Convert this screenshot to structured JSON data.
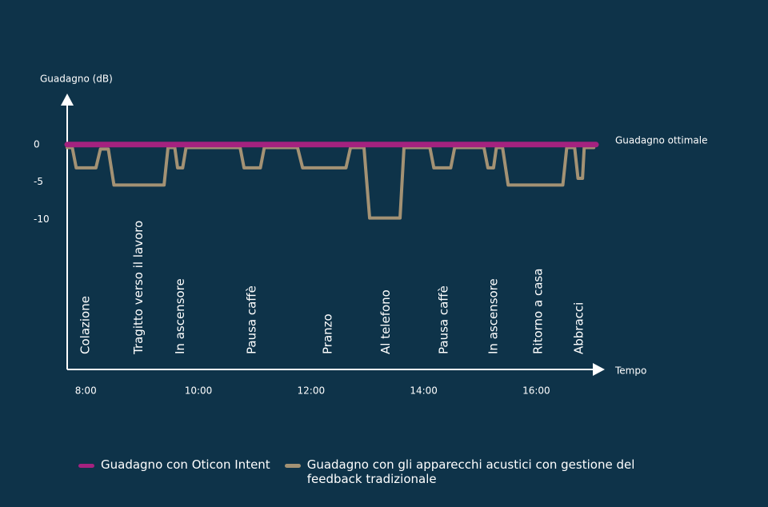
{
  "chart_data": {
    "type": "line",
    "y_label": "Guadagno (dB)",
    "x_label": "Tempo",
    "annotation": "Guadagno ottimale",
    "xlim": [
      7.67,
      17.2
    ],
    "ylim": [
      -30,
      6.7
    ],
    "xticks": [
      {
        "value": 8,
        "label": "8:00"
      },
      {
        "value": 10,
        "label": "10:00"
      },
      {
        "value": 12,
        "label": "12:00"
      },
      {
        "value": 14,
        "label": "14:00"
      },
      {
        "value": 16,
        "label": "16:00"
      }
    ],
    "yticks": [
      0,
      -5,
      -10
    ],
    "grid": false,
    "legend": "bottom",
    "events": [
      {
        "text": "Colazione",
        "x": 8.0
      },
      {
        "text": "Tragitto verso il lavoro",
        "x": 8.94
      },
      {
        "text": "In ascensore",
        "x": 9.68
      },
      {
        "text": "Pausa caffè",
        "x": 10.95
      },
      {
        "text": "Pranzo",
        "x": 12.3
      },
      {
        "text": "Al telefono",
        "x": 13.33
      },
      {
        "text": "Pausa caffè",
        "x": 14.36
      },
      {
        "text": "In ascensore",
        "x": 15.24
      },
      {
        "text": "Ritorno a casa",
        "x": 16.04
      },
      {
        "text": "Abbracci",
        "x": 16.76
      }
    ],
    "series": [
      {
        "name": "Guadagno con Oticon Intent",
        "color": "#a4227f",
        "x": [
          7.67,
          17.06
        ],
        "values": [
          0,
          0
        ]
      },
      {
        "name": "Guadagno con gli apparecchi acustici con gestione del feedback tradizionale",
        "color": "#a39274",
        "x": [
          7.67,
          7.76,
          7.83,
          8.18,
          8.26,
          8.4,
          8.5,
          9.39,
          9.46,
          9.58,
          9.63,
          9.72,
          9.78,
          10.74,
          10.81,
          11.1,
          11.17,
          11.76,
          11.85,
          12.62,
          12.7,
          12.94,
          13.04,
          13.58,
          13.65,
          14.11,
          14.18,
          14.48,
          14.55,
          15.07,
          15.14,
          15.24,
          15.29,
          15.4,
          15.5,
          16.47,
          16.54,
          16.68,
          16.74,
          16.82,
          16.85,
          17.02
        ],
        "values": [
          -0.4,
          -0.4,
          -3.1,
          -3.1,
          -0.6,
          -0.6,
          -5.4,
          -5.4,
          -0.4,
          -0.4,
          -3.1,
          -3.1,
          -0.4,
          -0.4,
          -3.1,
          -3.1,
          -0.4,
          -0.4,
          -3.1,
          -3.1,
          -0.4,
          -0.4,
          -9.8,
          -9.8,
          -0.4,
          -0.4,
          -3.1,
          -3.1,
          -0.4,
          -0.4,
          -3.1,
          -3.1,
          -0.4,
          -0.4,
          -5.4,
          -5.4,
          -0.4,
          -0.4,
          -4.5,
          -4.5,
          -0.4,
          -0.4
        ]
      }
    ]
  }
}
